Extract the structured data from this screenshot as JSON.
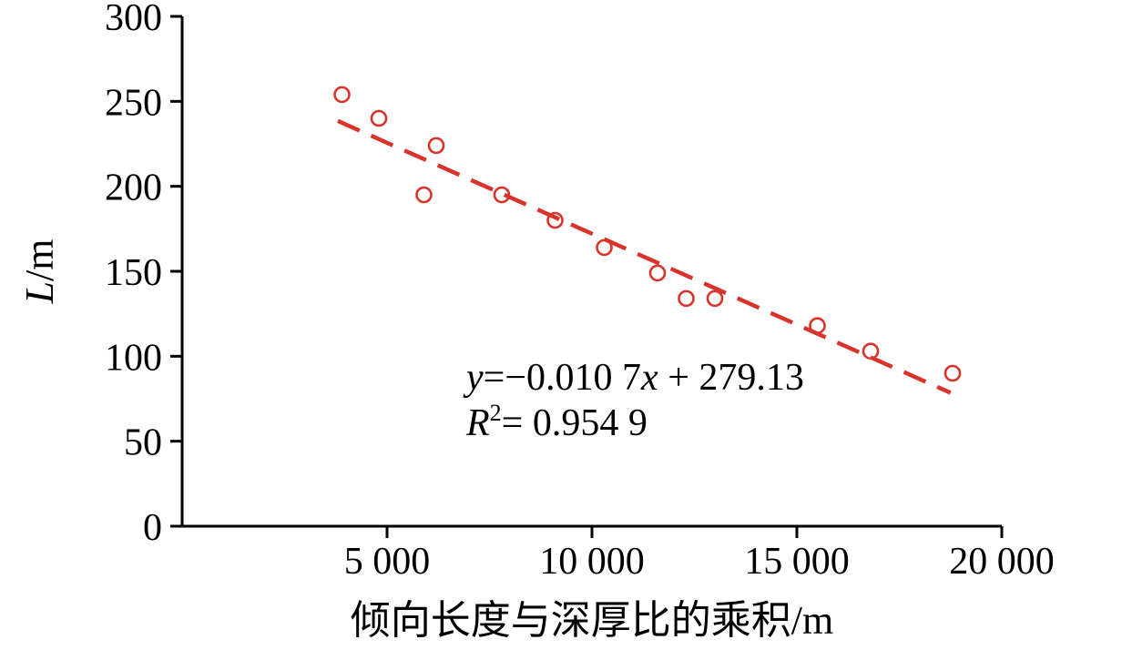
{
  "chart_data": {
    "type": "scatter",
    "title": "",
    "xlabel": "倾向长度与深厚比的乘积/m",
    "ylabel": "L/m",
    "ylabel_parts": [
      [
        "L",
        "i"
      ],
      [
        "/m",
        ""
      ]
    ],
    "xlim": [
      0,
      20000
    ],
    "ylim": [
      0,
      300
    ],
    "grid": false,
    "legend": null,
    "x_ticks": [
      {
        "value": 5000,
        "label": "5 000"
      },
      {
        "value": 10000,
        "label": "10 000"
      },
      {
        "value": 15000,
        "label": "15 000"
      },
      {
        "value": 20000,
        "label": "20 000"
      }
    ],
    "y_ticks": [
      {
        "value": 0,
        "label": "0"
      },
      {
        "value": 50,
        "label": "50"
      },
      {
        "value": 100,
        "label": "100"
      },
      {
        "value": 150,
        "label": "150"
      },
      {
        "value": 200,
        "label": "200"
      },
      {
        "value": 250,
        "label": "250"
      },
      {
        "value": 300,
        "label": "300"
      }
    ],
    "points": [
      [
        3900,
        254
      ],
      [
        4800,
        240
      ],
      [
        5900,
        195
      ],
      [
        6200,
        224
      ],
      [
        7800,
        195
      ],
      [
        9100,
        180
      ],
      [
        10300,
        164
      ],
      [
        11600,
        149
      ],
      [
        12300,
        134
      ],
      [
        13000,
        134
      ],
      [
        15500,
        118
      ],
      [
        16800,
        103
      ],
      [
        18800,
        90
      ]
    ],
    "trendline": {
      "slope": -0.0107,
      "intercept": 279.13,
      "x_start": 3800,
      "x_end": 18750,
      "style": "dashed"
    },
    "annotation": {
      "equation_text": "y=−0.010 7x + 279.13",
      "r_squared_text": "R2= 0.954 9",
      "line1_parts": [
        [
          "y",
          "i"
        ],
        [
          "=−0.010 7",
          ""
        ],
        [
          "x",
          "i"
        ],
        [
          " + 279.13",
          ""
        ]
      ],
      "line2_parts": [
        [
          "R",
          "i"
        ],
        [
          "2",
          "sup"
        ],
        [
          "= 0.954 9",
          ""
        ]
      ]
    },
    "marker": {
      "shape": "open-circle",
      "color": "#d9342b",
      "radius": 8
    },
    "line_color": "#d9342b",
    "axis_color": "#000000"
  }
}
